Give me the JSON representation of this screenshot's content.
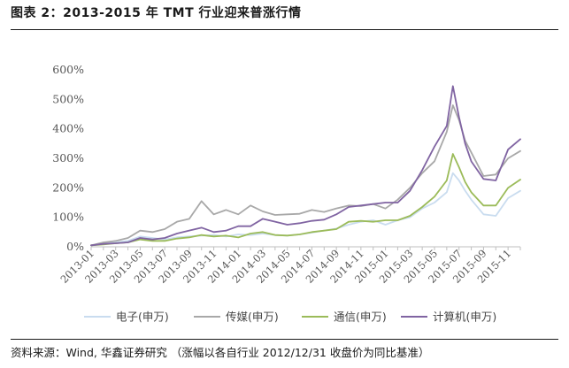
{
  "header": {
    "title": "图表 2：2013-2015 年 TMT 行业迎来普涨行情"
  },
  "footer": {
    "source": "资料来源：Wind, 华鑫证券研究 （涨幅以各自行业 2012/12/31 收盘价为同比基准）"
  },
  "chart_data": {
    "type": "line",
    "title": "图表 2：2013-2015 年 TMT 行业迎来普涨行情",
    "xlabel": "",
    "ylabel": "",
    "ylim": [
      0,
      600
    ],
    "yticks": [
      "0%",
      "100%",
      "200%",
      "300%",
      "400%",
      "500%",
      "600%"
    ],
    "ytick_values": [
      0,
      100,
      200,
      300,
      400,
      500,
      600
    ],
    "xticks": [
      "2013-01",
      "2013-03",
      "2013-05",
      "2013-07",
      "2013-09",
      "2013-11",
      "2014-01",
      "2014-03",
      "2014-05",
      "2014-07",
      "2014-09",
      "2014-11",
      "2015-01",
      "2015-03",
      "2015-05",
      "2015-07",
      "2015-09",
      "2015-11"
    ],
    "grid": false,
    "legend_position": "bottom",
    "x_months": [
      0,
      1,
      2,
      3,
      4,
      5,
      6,
      7,
      8,
      9,
      10,
      11,
      12,
      13,
      14,
      15,
      16,
      17,
      18,
      19,
      20,
      21,
      22,
      23,
      24,
      25,
      26,
      27,
      28,
      29,
      29.5,
      30,
      30.5,
      31,
      32,
      33,
      34,
      35
    ],
    "series": [
      {
        "name": "电子(申万)",
        "color": "#c9dcef",
        "values": [
          5,
          10,
          15,
          20,
          35,
          30,
          25,
          32,
          35,
          38,
          40,
          35,
          42,
          40,
          45,
          40,
          38,
          42,
          48,
          55,
          62,
          75,
          85,
          90,
          75,
          90,
          100,
          130,
          150,
          185,
          250,
          225,
          190,
          160,
          110,
          105,
          165,
          190
        ]
      },
      {
        "name": "传媒(申万)",
        "color": "#a8a8a8",
        "values": [
          5,
          15,
          20,
          30,
          55,
          50,
          60,
          85,
          95,
          155,
          110,
          125,
          110,
          140,
          120,
          108,
          110,
          112,
          125,
          118,
          130,
          140,
          138,
          145,
          130,
          160,
          200,
          250,
          290,
          390,
          480,
          430,
          360,
          320,
          240,
          245,
          300,
          325
        ]
      },
      {
        "name": "通信(申万)",
        "color": "#9bbb59",
        "values": [
          5,
          8,
          12,
          15,
          25,
          20,
          20,
          28,
          32,
          40,
          35,
          38,
          32,
          45,
          50,
          40,
          38,
          42,
          50,
          55,
          60,
          85,
          88,
          85,
          90,
          90,
          105,
          135,
          170,
          225,
          315,
          270,
          220,
          185,
          140,
          140,
          200,
          228
        ]
      },
      {
        "name": "计算机(申万)",
        "color": "#8064a2",
        "values": [
          5,
          10,
          12,
          15,
          30,
          25,
          30,
          45,
          55,
          65,
          50,
          55,
          70,
          70,
          95,
          85,
          75,
          80,
          88,
          92,
          110,
          135,
          140,
          145,
          150,
          150,
          190,
          260,
          340,
          410,
          545,
          440,
          350,
          290,
          230,
          225,
          330,
          365
        ]
      }
    ]
  }
}
